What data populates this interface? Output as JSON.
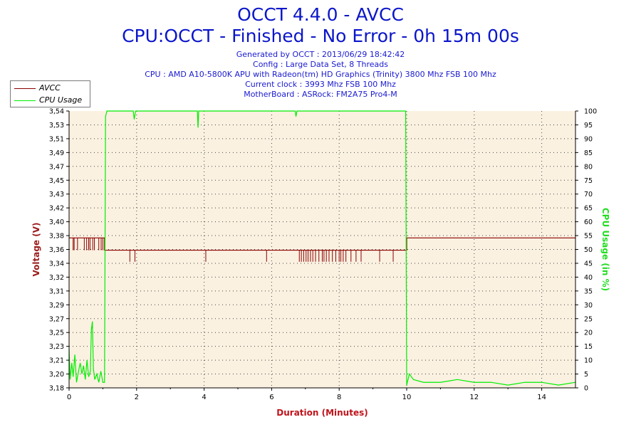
{
  "header": {
    "title": "OCCT 4.4.0 - AVCC",
    "subtitle": "CPU:OCCT - Finished - No Error - 0h 15m 00s",
    "info_lines": [
      "Generated by OCCT : 2013/06/29 18:42:42",
      "Config : Large Data Set, 8 Threads",
      "CPU : AMD A10-5800K APU with Radeon(tm) HD Graphics (Trinity) 3800 Mhz FSB 100 Mhz",
      "Current clock : 3993 Mhz FSB 100 Mhz",
      "MotherBoard : ASRock: FM2A75 Pro4-M"
    ]
  },
  "colors": {
    "avcc": "#8b0000",
    "cpu": "#00ee00",
    "plot_bg": "#fbf1e1",
    "title": "#0b16c9",
    "xlabel": "#c0141c",
    "ylabel_left": "#9b1d1d",
    "ylabel_right": "#22dd22"
  },
  "chart_data": {
    "type": "line",
    "title": "OCCT 4.4.0 - AVCC",
    "xlabel": "Duration (Minutes)",
    "ylabel": "Voltage (V)",
    "y2label": "CPU Usage (in %)",
    "xlim": [
      0,
      15
    ],
    "ylim": [
      3.18,
      3.54
    ],
    "y2lim": [
      0,
      100
    ],
    "x_ticks": [
      "0",
      "2",
      "4",
      "6",
      "8",
      "10",
      "12",
      "14"
    ],
    "y_ticks": [
      "3,18",
      "3,20",
      "3,21",
      "3,23",
      "3,25",
      "3,27",
      "3,29",
      "3,31",
      "3,32",
      "3,34",
      "3,36",
      "3,38",
      "3,40",
      "3,42",
      "3,43",
      "3,45",
      "3,47",
      "3,49",
      "3,51",
      "3,53",
      "3,54"
    ],
    "y2_ticks": [
      "0",
      "5",
      "10",
      "15",
      "20",
      "25",
      "30",
      "35",
      "40",
      "45",
      "50",
      "55",
      "60",
      "65",
      "70",
      "75",
      "80",
      "85",
      "90",
      "95",
      "100"
    ],
    "grid": true,
    "legend_position": "top-left",
    "series": [
      {
        "name": "AVCC",
        "axis": "left",
        "x": [
          0,
          1.05,
          1.05,
          10.0,
          10.0,
          15
        ],
        "y": [
          3.375,
          3.375,
          3.359,
          3.359,
          3.375,
          3.375
        ],
        "dips_x": [
          0.12,
          0.15,
          0.25,
          0.45,
          0.52,
          0.58,
          0.62,
          0.7,
          0.75,
          0.88,
          0.95,
          1.0,
          1.8,
          1.95,
          4.05,
          5.85,
          6.82,
          6.88,
          6.95,
          7.02,
          7.08,
          7.15,
          7.22,
          7.3,
          7.4,
          7.5,
          7.55,
          7.62,
          7.7,
          7.8,
          7.9,
          8.0,
          8.05,
          8.12,
          8.2,
          8.35,
          8.5,
          8.65,
          9.2,
          9.6
        ],
        "dip_value": 3.344
      },
      {
        "name": "CPU Usage",
        "axis": "right",
        "x": [
          0,
          0.03,
          0.08,
          0.12,
          0.17,
          0.22,
          0.28,
          0.33,
          0.38,
          0.43,
          0.48,
          0.53,
          0.58,
          0.63,
          0.66,
          0.69,
          0.72,
          0.76,
          0.82,
          0.88,
          0.94,
          1.0,
          1.05,
          1.08,
          1.12,
          1.9,
          1.93,
          1.97,
          2.0,
          3.8,
          3.82,
          3.84,
          3.86,
          6.7,
          6.72,
          6.75,
          9.95,
          9.97,
          10.0,
          10.08,
          10.2,
          10.5,
          11.0,
          11.5,
          12.0,
          12.5,
          13.0,
          13.5,
          14.0,
          14.5,
          15.0
        ],
        "y": [
          14,
          3,
          9,
          4,
          12,
          2,
          6,
          9,
          5,
          8,
          3,
          10,
          4,
          6,
          21,
          24,
          7,
          3,
          5,
          2,
          6,
          2,
          2,
          98,
          100,
          100,
          97,
          100,
          100,
          100,
          94,
          100,
          100,
          100,
          98,
          100,
          100,
          100,
          1,
          5,
          3,
          2,
          2,
          3,
          2,
          2,
          1,
          2,
          2,
          1,
          2
        ]
      }
    ]
  }
}
